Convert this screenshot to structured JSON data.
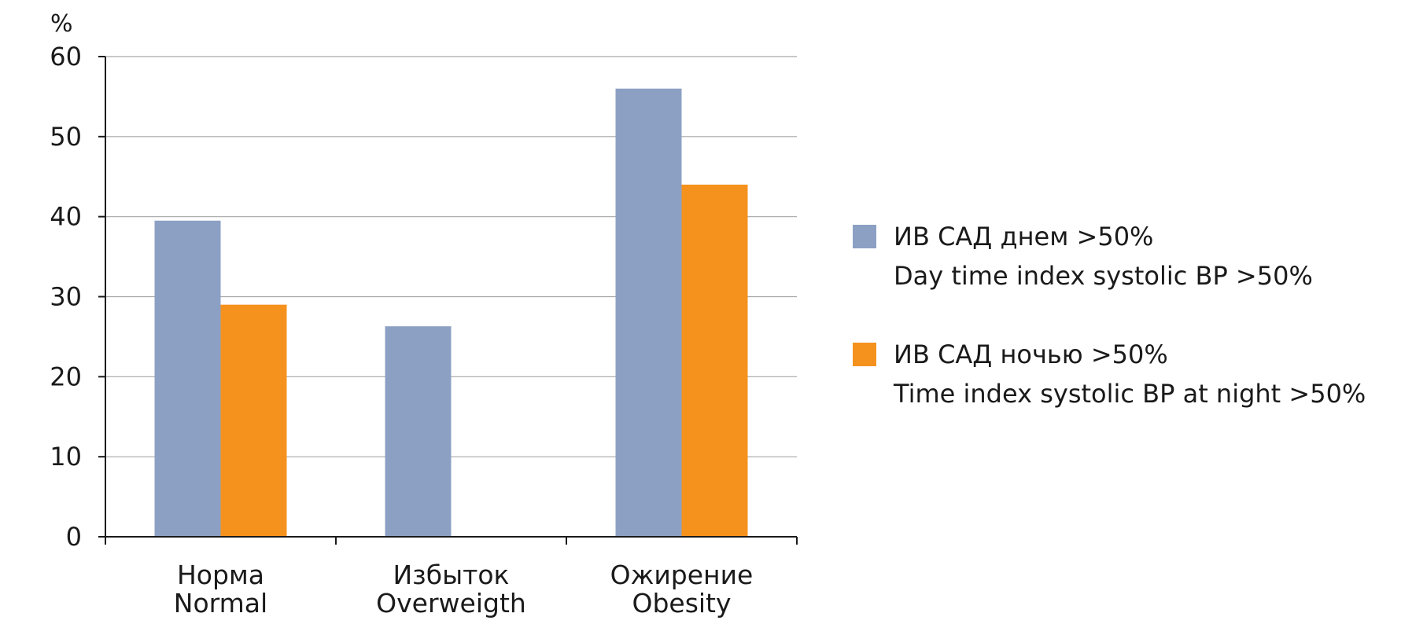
{
  "chart_data": {
    "type": "bar",
    "ylabel": "%",
    "ylim": [
      0,
      60
    ],
    "yticks": [
      0,
      10,
      20,
      30,
      40,
      50,
      60
    ],
    "grid": true,
    "legend_position": "right",
    "categories": [
      [
        "Норма",
        "Normal"
      ],
      [
        "Избыток",
        "Overweigth"
      ],
      [
        "Ожирение",
        "Obesity"
      ]
    ],
    "series": [
      {
        "name": [
          "ИВ САД днем >50%",
          "Day time index systolic BP >50%"
        ],
        "color": "#8ca0c4",
        "values": [
          39.5,
          26.3,
          56
        ]
      },
      {
        "name": [
          "ИВ САД ночью >50%",
          "Time index systolic BP at night >50%"
        ],
        "color": "#f5921e",
        "values": [
          29,
          0,
          44
        ]
      }
    ]
  }
}
